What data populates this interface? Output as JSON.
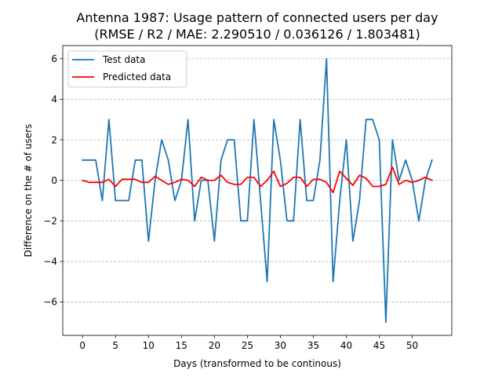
{
  "chart_data": {
    "type": "line",
    "title_line1": "Antenna 1987: Usage pattern of connected users per day",
    "title_line2": "(RMSE / R2 / MAE: 2.290510 / 0.036126 / 1.803481)",
    "xlabel": "Days (transformed to be continous)",
    "ylabel": "Difference on the # of users",
    "xlim": [
      -3,
      56
    ],
    "ylim": [
      -7.65,
      6.65
    ],
    "xticks": [
      0,
      5,
      10,
      15,
      20,
      25,
      30,
      35,
      40,
      45,
      50
    ],
    "yticks": [
      -6,
      -4,
      -2,
      0,
      2,
      4,
      6
    ],
    "ytick_labels": [
      "−6",
      "−4",
      "−2",
      "0",
      "2",
      "4",
      "6"
    ],
    "grid": "horizontal dashed",
    "legend_position": "top-left",
    "x": [
      0,
      1,
      2,
      3,
      4,
      5,
      6,
      7,
      8,
      9,
      10,
      11,
      12,
      13,
      14,
      15,
      16,
      17,
      18,
      19,
      20,
      21,
      22,
      23,
      24,
      25,
      26,
      27,
      28,
      29,
      30,
      31,
      32,
      33,
      34,
      35,
      36,
      37,
      38,
      39,
      40,
      41,
      42,
      43,
      44,
      45,
      46,
      47,
      48,
      49,
      50,
      51,
      52,
      53
    ],
    "series": [
      {
        "name": "Test data",
        "color": "#1f77b4",
        "values": [
          1,
          1,
          1,
          -1,
          3,
          -1,
          -1,
          -1,
          1,
          1,
          -3,
          0,
          2,
          1,
          -1,
          0,
          3,
          -2,
          0,
          0,
          -3,
          1,
          2,
          2,
          -2,
          -2,
          3,
          -1,
          -5,
          3,
          1,
          -2,
          -2,
          3,
          -1,
          -1,
          1,
          6,
          -5,
          -1,
          2,
          -3,
          -1,
          3,
          3,
          2,
          -7,
          2,
          0,
          1,
          0,
          -2,
          0,
          1
        ]
      },
      {
        "name": "Predicted data",
        "color": "#ff0000",
        "values": [
          0,
          -0.1,
          -0.1,
          -0.1,
          0.05,
          -0.3,
          0.05,
          0.05,
          0.05,
          -0.1,
          -0.1,
          0.2,
          0,
          -0.2,
          -0.1,
          0.05,
          0,
          -0.3,
          0.15,
          0,
          0,
          0.25,
          -0.1,
          -0.2,
          -0.2,
          0.15,
          0.15,
          -0.3,
          0,
          0.45,
          -0.3,
          -0.15,
          0.15,
          0.15,
          -0.3,
          0.05,
          0.05,
          -0.1,
          -0.6,
          0.45,
          0.1,
          -0.25,
          0.25,
          0.1,
          -0.3,
          -0.3,
          -0.2,
          0.65,
          -0.2,
          0,
          -0.1,
          0,
          0.15,
          0
        ]
      }
    ]
  }
}
